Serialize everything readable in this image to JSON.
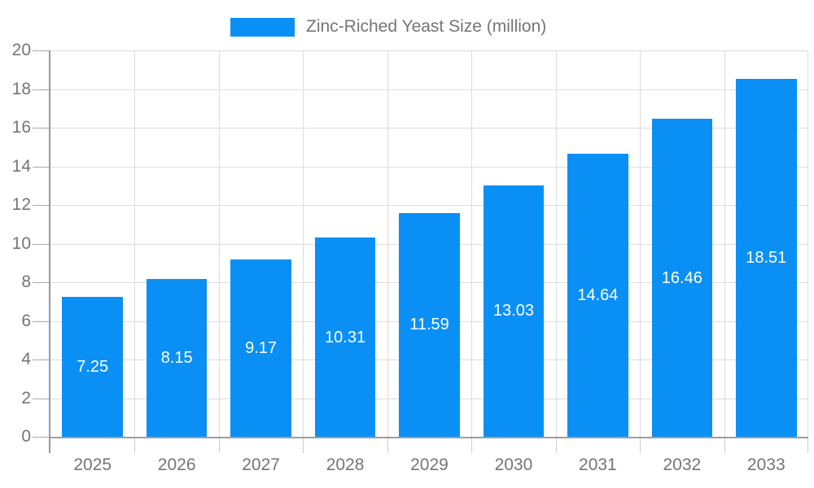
{
  "legend": {
    "label": "Zinc-Riched Yeast Size (million)"
  },
  "chart_data": {
    "type": "bar",
    "title": "Zinc-Riched Yeast Size (million)",
    "categories": [
      "2025",
      "2026",
      "2027",
      "2028",
      "2029",
      "2030",
      "2031",
      "2032",
      "2033"
    ],
    "values": [
      7.25,
      8.15,
      9.17,
      10.31,
      11.59,
      13.03,
      14.64,
      16.46,
      18.51
    ],
    "value_labels": [
      "7.25",
      "8.15",
      "9.17",
      "10.31",
      "11.59",
      "13.03",
      "14.64",
      "16.46",
      "18.51"
    ],
    "xlabel": "",
    "ylabel": "",
    "ylim": [
      0,
      20
    ],
    "ytick_step": 2,
    "yticks": [
      0,
      2,
      4,
      6,
      8,
      10,
      12,
      14,
      16,
      18,
      20
    ],
    "grid": true,
    "legend_position": "top",
    "colors": {
      "bar": "#0a90f5",
      "value_label": "#ffffff",
      "grid": "#dddddd",
      "axis": "#999999",
      "tick_label": "#757575"
    }
  }
}
